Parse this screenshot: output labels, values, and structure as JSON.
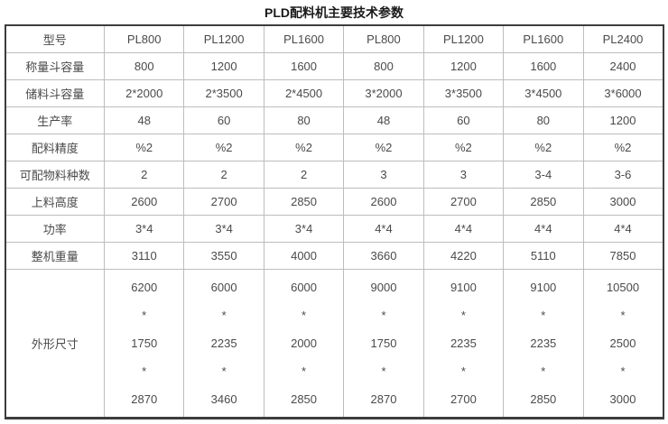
{
  "page": {
    "title": "PLD配料机主要技术参数"
  },
  "colors": {
    "background": "#ffffff",
    "text": "#4a4a4a",
    "title_text": "#1a1a1a",
    "grid_line": "#bdbdbd",
    "outer_border": "#3d3d3d"
  },
  "table": {
    "columns": [
      "型号",
      "PL800",
      "PL1200",
      "PL1600",
      "PL800",
      "PL1200",
      "PL1600",
      "PL2400"
    ],
    "rows": [
      {
        "label": "称量斗容量",
        "values": [
          "800",
          "1200",
          "1600",
          "800",
          "1200",
          "1600",
          "2400"
        ]
      },
      {
        "label": "储料斗容量",
        "values": [
          "2*2000",
          "2*3500",
          "2*4500",
          "3*2000",
          "3*3500",
          "3*4500",
          "3*6000"
        ]
      },
      {
        "label": "生产率",
        "values": [
          "48",
          "60",
          "80",
          "48",
          "60",
          "80",
          "1200"
        ]
      },
      {
        "label": "配料精度",
        "values": [
          "%2",
          "%2",
          "%2",
          "%2",
          "%2",
          "%2",
          "%2"
        ]
      },
      {
        "label": "可配物料种数",
        "values": [
          "2",
          "2",
          "2",
          "3",
          "3",
          "3-4",
          "3-6"
        ]
      },
      {
        "label": "上料高度",
        "values": [
          "2600",
          "2700",
          "2850",
          "2600",
          "2700",
          "2850",
          "3000"
        ]
      },
      {
        "label": "功率",
        "values": [
          "3*4",
          "3*4",
          "3*4",
          "4*4",
          "4*4",
          "4*4",
          "4*4"
        ]
      },
      {
        "label": "整机重量",
        "values": [
          "3110",
          "3550",
          "4000",
          "3660",
          "4220",
          "5110",
          "7850"
        ]
      },
      {
        "label": "外形尺寸",
        "values": [
          [
            "6200",
            "*",
            "1750",
            "*",
            "2870"
          ],
          [
            "6000",
            "*",
            "2235",
            "*",
            "3460"
          ],
          [
            "6000",
            "*",
            "2000",
            "*",
            "2850"
          ],
          [
            "9000",
            "*",
            "1750",
            "*",
            "2870"
          ],
          [
            "9100",
            "*",
            "2235",
            "*",
            "2700"
          ],
          [
            "9100",
            "*",
            "2235",
            "*",
            "2850"
          ],
          [
            "10500",
            "*",
            "2500",
            "*",
            "3000"
          ]
        ]
      }
    ]
  }
}
